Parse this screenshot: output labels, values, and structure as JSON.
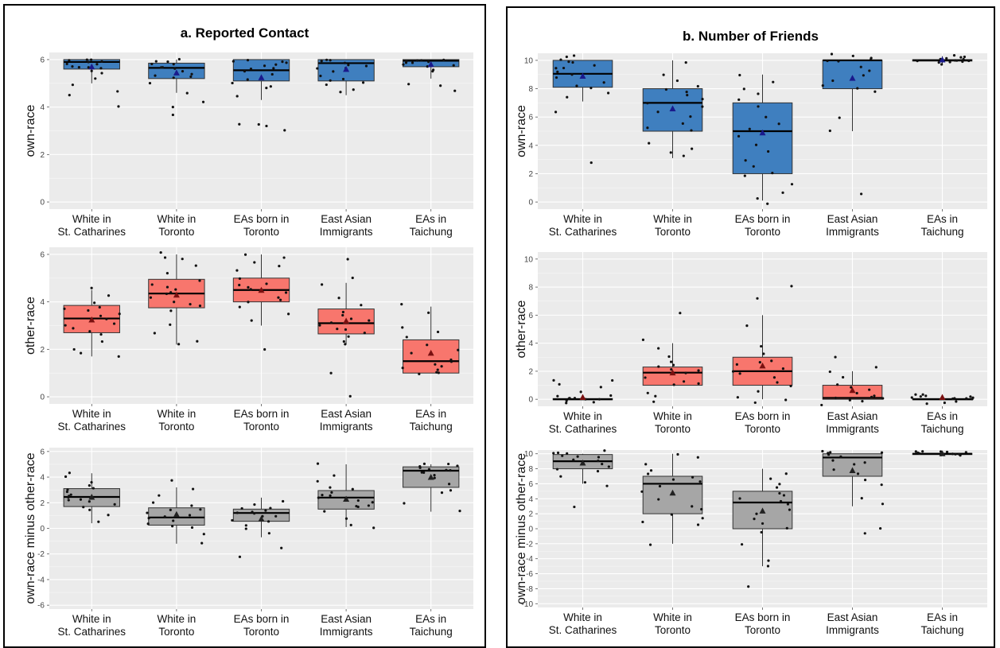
{
  "panels": [
    {
      "title": "a. Reported Contact"
    },
    {
      "title": "b. Number of Friends"
    }
  ],
  "colors": {
    "own_race_fill": "#3f7fbf",
    "other_race_fill": "#f8766d",
    "difference_fill": "#a6a6a6",
    "panel_background": "#ebebeb",
    "gridline": "#ffffff",
    "mean_marker_own": "#1a1a8c",
    "mean_marker_other": "#7a1010",
    "mean_marker_diff": "#222222"
  },
  "chart_data": [
    {
      "type": "box",
      "panel": "a. Reported Contact",
      "ylabel": "own-race",
      "fill": "#3f7fbf",
      "mean_color": "#1a1a8c",
      "ylim": [
        -0.3,
        6.3
      ],
      "yticks": [
        0,
        2,
        4,
        6
      ],
      "categories": [
        [
          "White in",
          "St. Catharines"
        ],
        [
          "White in",
          "Toronto"
        ],
        [
          "EAs born in",
          "Toronto"
        ],
        [
          "East Asian",
          "Immigrants"
        ],
        [
          "EAs in",
          "Taichung"
        ]
      ],
      "boxes": [
        {
          "q1": 5.6,
          "median": 5.9,
          "q3": 6.0,
          "whisker_low": 5.0,
          "whisker_high": 6.0,
          "mean": 5.7,
          "points": [
            6.0,
            5.95,
            5.9,
            5.85,
            5.8,
            5.7,
            5.6,
            5.5,
            5.4,
            5.2,
            4.9,
            4.7,
            4.5,
            4.0,
            6.0,
            5.9,
            5.75,
            5.65
          ]
        },
        {
          "q1": 5.2,
          "median": 5.65,
          "q3": 5.85,
          "whisker_low": 4.6,
          "whisker_high": 6.0,
          "mean": 5.45,
          "points": [
            6.0,
            5.95,
            5.9,
            5.85,
            5.7,
            5.6,
            5.5,
            5.4,
            5.3,
            5.2,
            5.0,
            4.6,
            4.2,
            4.0,
            3.7,
            5.8,
            5.65,
            5.25
          ]
        },
        {
          "q1": 5.1,
          "median": 5.55,
          "q3": 6.0,
          "whisker_low": 4.3,
          "whisker_high": 6.0,
          "mean": 5.25,
          "points": [
            6.0,
            5.95,
            5.9,
            5.8,
            5.7,
            5.6,
            5.5,
            5.4,
            5.2,
            5.0,
            4.8,
            4.5,
            3.3,
            3.2,
            3.3,
            3.0,
            5.9,
            5.65,
            4.9
          ]
        },
        {
          "q1": 5.1,
          "median": 5.85,
          "q3": 6.0,
          "whisker_low": 4.5,
          "whisker_high": 6.0,
          "mean": 5.6,
          "points": [
            6.0,
            5.95,
            5.9,
            5.8,
            5.7,
            5.6,
            5.5,
            5.3,
            5.1,
            5.0,
            4.9,
            4.7,
            4.6,
            5.85,
            5.65,
            5.2
          ]
        },
        {
          "q1": 5.7,
          "median": 5.95,
          "q3": 6.0,
          "whisker_low": 5.2,
          "whisker_high": 6.0,
          "mean": 5.8,
          "points": [
            6.0,
            6.0,
            5.95,
            5.9,
            5.9,
            5.85,
            5.8,
            5.7,
            5.6,
            5.5,
            5.0,
            4.9,
            4.7,
            5.95,
            5.75
          ]
        }
      ]
    },
    {
      "type": "box",
      "panel": "a. Reported Contact",
      "ylabel": "other-race",
      "fill": "#f8766d",
      "mean_color": "#7a1010",
      "ylim": [
        -0.3,
        6.3
      ],
      "yticks": [
        0,
        2,
        4,
        6
      ],
      "categories": [
        [
          "White in",
          "St. Catharines"
        ],
        [
          "White in",
          "Toronto"
        ],
        [
          "EAs born in",
          "Toronto"
        ],
        [
          "East Asian",
          "Immigrants"
        ],
        [
          "EAs in",
          "Taichung"
        ]
      ],
      "boxes": [
        {
          "q1": 2.7,
          "median": 3.3,
          "q3": 3.85,
          "whisker_low": 1.7,
          "whisker_high": 4.5,
          "mean": 3.25,
          "points": [
            4.6,
            4.3,
            4.0,
            3.8,
            3.6,
            3.5,
            3.4,
            3.3,
            3.2,
            3.1,
            3.0,
            2.8,
            2.6,
            2.3,
            2.0,
            1.8,
            1.7,
            3.7,
            2.9
          ]
        },
        {
          "q1": 3.75,
          "median": 4.35,
          "q3": 4.95,
          "whisker_low": 2.2,
          "whisker_high": 6.0,
          "mean": 4.3,
          "points": [
            6.1,
            5.9,
            5.8,
            5.5,
            5.2,
            4.9,
            4.7,
            4.5,
            4.4,
            4.3,
            4.2,
            4.0,
            3.8,
            3.6,
            3.0,
            2.7,
            2.3,
            2.2,
            4.6,
            3.9
          ]
        },
        {
          "q1": 4.0,
          "median": 4.5,
          "q3": 5.0,
          "whisker_low": 3.0,
          "whisker_high": 6.0,
          "mean": 4.5,
          "points": [
            6.0,
            5.9,
            5.7,
            5.5,
            5.3,
            5.0,
            4.8,
            4.6,
            4.5,
            4.4,
            4.2,
            4.0,
            3.8,
            3.5,
            3.2,
            2.0,
            4.7,
            4.1
          ]
        },
        {
          "q1": 2.65,
          "median": 3.1,
          "q3": 3.7,
          "whisker_low": 2.2,
          "whisker_high": 4.8,
          "mean": 3.2,
          "points": [
            5.8,
            5.0,
            4.7,
            4.2,
            3.9,
            3.6,
            3.4,
            3.2,
            3.1,
            3.0,
            2.9,
            2.7,
            2.5,
            2.3,
            2.2,
            1.0,
            0.0,
            3.3,
            2.8
          ]
        },
        {
          "q1": 1.0,
          "median": 1.5,
          "q3": 2.4,
          "whisker_low": 1.0,
          "whisker_high": 3.8,
          "mean": 1.85,
          "points": [
            3.9,
            3.5,
            2.7,
            2.5,
            2.2,
            2.0,
            1.8,
            1.6,
            1.5,
            1.4,
            1.2,
            1.1,
            1.0,
            1.0,
            1.0,
            1.3,
            2.9
          ]
        }
      ]
    },
    {
      "type": "box",
      "panel": "a. Reported Contact",
      "ylabel": "own-race minus other-race",
      "fill": "#a6a6a6",
      "mean_color": "#222222",
      "ylim": [
        -6.3,
        6.3
      ],
      "yticks": [
        -6,
        -4,
        -2,
        0,
        2,
        4,
        6
      ],
      "categories": [
        [
          "White in",
          "St. Catharines"
        ],
        [
          "White in",
          "Toronto"
        ],
        [
          "EAs born in",
          "Toronto"
        ],
        [
          "East Asian",
          "Immigrants"
        ],
        [
          "EAs in",
          "Taichung"
        ]
      ],
      "boxes": [
        {
          "q1": 1.7,
          "median": 2.45,
          "q3": 3.1,
          "whisker_low": 0.4,
          "whisker_high": 4.3,
          "mean": 2.45,
          "points": [
            4.3,
            4.0,
            3.6,
            3.2,
            3.0,
            2.8,
            2.6,
            2.5,
            2.4,
            2.3,
            2.1,
            1.9,
            1.7,
            1.4,
            1.0,
            0.5,
            3.4,
            2.2
          ]
        },
        {
          "q1": 0.25,
          "median": 0.85,
          "q3": 1.6,
          "whisker_low": -1.2,
          "whisker_high": 3.2,
          "mean": 1.1,
          "points": [
            3.7,
            3.1,
            2.6,
            2.0,
            1.7,
            1.4,
            1.2,
            1.0,
            0.8,
            0.6,
            0.4,
            0.2,
            0.0,
            -0.4,
            -1.2,
            0.9,
            1.5
          ]
        },
        {
          "q1": 0.55,
          "median": 1.2,
          "q3": 1.5,
          "whisker_low": -0.7,
          "whisker_high": 2.4,
          "mean": 0.75,
          "points": [
            2.1,
            1.9,
            1.6,
            1.4,
            1.3,
            1.2,
            1.1,
            0.9,
            0.7,
            0.5,
            0.3,
            0.0,
            -0.4,
            -1.6,
            -2.3,
            1.0,
            1.5
          ]
        },
        {
          "q1": 1.5,
          "median": 2.4,
          "q3": 2.95,
          "whisker_low": 0.1,
          "whisker_high": 5.0,
          "mean": 2.3,
          "points": [
            5.0,
            4.2,
            3.6,
            3.2,
            3.0,
            2.8,
            2.6,
            2.4,
            2.2,
            2.0,
            1.8,
            1.6,
            1.3,
            0.8,
            0.3,
            0.1,
            2.5,
            1.7
          ]
        },
        {
          "q1": 3.2,
          "median": 4.5,
          "q3": 4.8,
          "whisker_low": 1.3,
          "whisker_high": 5.0,
          "mean": 4.0,
          "points": [
            5.0,
            5.0,
            4.9,
            4.8,
            4.7,
            4.6,
            4.5,
            4.4,
            4.2,
            3.9,
            3.5,
            3.0,
            2.8,
            2.0,
            1.3,
            4.6,
            4.3
          ]
        }
      ]
    },
    {
      "type": "box",
      "panel": "b. Number of Friends",
      "ylabel": "own-race",
      "fill": "#3f7fbf",
      "mean_color": "#1a1a8c",
      "ylim": [
        -0.5,
        10.5
      ],
      "yticks": [
        0,
        2,
        4,
        6,
        8,
        10
      ],
      "categories": [
        [
          "White in",
          "St. Catharines"
        ],
        [
          "White in",
          "Toronto"
        ],
        [
          "EAs born in",
          "Toronto"
        ],
        [
          "East Asian",
          "Immigrants"
        ],
        [
          "EAs in",
          "Taichung"
        ]
      ],
      "boxes": [
        {
          "q1": 8.1,
          "median": 9.05,
          "q3": 10.0,
          "whisker_low": 7.1,
          "whisker_high": 10.0,
          "mean": 8.9,
          "points": [
            10.3,
            10.2,
            10.0,
            9.9,
            9.8,
            9.6,
            9.4,
            9.2,
            9.0,
            8.8,
            8.5,
            8.2,
            8.0,
            7.7,
            7.4,
            6.3,
            2.8,
            9.5
          ]
        },
        {
          "q1": 5.0,
          "median": 7.0,
          "q3": 8.0,
          "whisker_low": 3.1,
          "whisker_high": 10.0,
          "mean": 6.6,
          "points": [
            9.9,
            9.0,
            8.6,
            8.2,
            8.0,
            7.8,
            7.2,
            7.0,
            6.8,
            6.3,
            6.0,
            5.6,
            5.2,
            5.0,
            4.2,
            3.8,
            3.5,
            3.2,
            7.5
          ]
        },
        {
          "q1": 2.0,
          "median": 5.0,
          "q3": 7.0,
          "whisker_low": 0.1,
          "whisker_high": 9.0,
          "mean": 4.9,
          "points": [
            9.0,
            8.4,
            8.0,
            7.2,
            6.8,
            6.0,
            5.5,
            5.1,
            4.6,
            4.0,
            3.5,
            3.0,
            2.5,
            2.1,
            1.8,
            1.2,
            0.6,
            0.2,
            -0.1,
            7.7
          ]
        },
        {
          "q1": 8.0,
          "median": 10.0,
          "q3": 10.0,
          "whisker_low": 5.0,
          "whisker_high": 10.0,
          "mean": 8.75,
          "points": [
            10.4,
            10.3,
            10.2,
            10.1,
            10.0,
            10.0,
            9.6,
            9.0,
            8.6,
            8.2,
            8.0,
            7.8,
            5.9,
            5.0,
            0.6,
            9.3
          ]
        },
        {
          "q1": 9.95,
          "median": 10.0,
          "q3": 10.05,
          "whisker_low": 9.7,
          "whisker_high": 10.3,
          "mean": 10.05,
          "points": [
            10.3,
            10.25,
            10.2,
            10.1,
            10.05,
            10.0,
            10.0,
            9.95,
            9.9,
            9.85,
            9.8,
            9.7,
            10.15,
            10.05
          ]
        }
      ]
    },
    {
      "type": "box",
      "panel": "b. Number of Friends",
      "ylabel": "other-race",
      "fill": "#f8766d",
      "mean_color": "#7a1010",
      "ylim": [
        -0.5,
        10.5
      ],
      "yticks": [
        0,
        2,
        4,
        6,
        8,
        10
      ],
      "categories": [
        [
          "White in",
          "St. Catharines"
        ],
        [
          "White in",
          "Toronto"
        ],
        [
          "EAs born in",
          "Toronto"
        ],
        [
          "East Asian",
          "Immigrants"
        ],
        [
          "EAs in",
          "Taichung"
        ]
      ],
      "boxes": [
        {
          "q1": 0.0,
          "median": 0.0,
          "q3": 0.05,
          "whisker_low": 0.0,
          "whisker_high": 0.1,
          "mean": 0.15,
          "points": [
            1.4,
            1.3,
            1.0,
            0.8,
            0.5,
            0.3,
            0.2,
            0.1,
            0.0,
            0.0,
            0.0,
            -0.1,
            -0.2,
            -0.3,
            0.05
          ]
        },
        {
          "q1": 1.0,
          "median": 1.9,
          "q3": 2.3,
          "whisker_low": 1.0,
          "whisker_high": 4.0,
          "mean": 1.9,
          "points": [
            6.1,
            4.2,
            3.7,
            3.0,
            2.7,
            2.4,
            2.2,
            2.0,
            1.9,
            1.6,
            1.3,
            1.1,
            1.0,
            0.5,
            0.2,
            -0.2,
            2.5
          ]
        },
        {
          "q1": 1.0,
          "median": 2.0,
          "q3": 3.0,
          "whisker_low": 0.0,
          "whisker_high": 6.0,
          "mean": 2.4,
          "points": [
            8.0,
            7.2,
            5.2,
            3.8,
            3.2,
            2.8,
            2.5,
            2.2,
            2.0,
            1.8,
            1.5,
            1.2,
            1.0,
            0.5,
            0.2,
            0.0,
            -0.2,
            2.6
          ]
        },
        {
          "q1": 0.0,
          "median": 0.1,
          "q3": 1.0,
          "whisker_low": 0.0,
          "whisker_high": 2.0,
          "mean": 0.65,
          "points": [
            3.0,
            2.3,
            2.0,
            1.5,
            1.1,
            0.9,
            0.5,
            0.3,
            0.2,
            0.1,
            0.0,
            0.0,
            -0.2,
            -0.4,
            0.7
          ]
        },
        {
          "q1": 0.0,
          "median": 0.0,
          "q3": 0.05,
          "whisker_low": 0.0,
          "whisker_high": 0.2,
          "mean": 0.15,
          "points": [
            0.4,
            0.3,
            0.3,
            0.2,
            0.1,
            0.0,
            0.0,
            0.0,
            0.0,
            -0.1,
            -0.2,
            -0.3,
            0.1,
            0.2
          ]
        }
      ]
    },
    {
      "type": "box",
      "panel": "b. Number of Friends",
      "ylabel": "own-race minus other-race",
      "fill": "#a6a6a6",
      "mean_color": "#222222",
      "ylim": [
        -10.5,
        10.5
      ],
      "yticks": [
        -10,
        -8,
        -6,
        -4,
        -2,
        0,
        2,
        4,
        6,
        8,
        10
      ],
      "categories": [
        [
          "White in",
          "St. Catharines"
        ],
        [
          "White in",
          "Toronto"
        ],
        [
          "EAs born in",
          "Toronto"
        ],
        [
          "East Asian",
          "Immigrants"
        ],
        [
          "EAs in",
          "Taichung"
        ]
      ],
      "boxes": [
        {
          "q1": 8.0,
          "median": 9.0,
          "q3": 9.9,
          "whisker_low": 6.0,
          "whisker_high": 10.0,
          "mean": 8.8,
          "points": [
            10.3,
            10.2,
            10.1,
            10.0,
            9.8,
            9.6,
            9.3,
            9.0,
            8.7,
            8.4,
            8.0,
            7.6,
            7.0,
            6.2,
            5.7,
            2.8,
            9.5
          ]
        },
        {
          "q1": 2.0,
          "median": 6.0,
          "q3": 7.0,
          "whisker_low": -2.0,
          "whisker_high": 10.0,
          "mean": 4.8,
          "points": [
            10.0,
            9.6,
            8.6,
            7.8,
            7.2,
            6.8,
            6.2,
            5.6,
            5.0,
            4.0,
            3.0,
            2.5,
            2.0,
            1.4,
            1.0,
            0.6,
            -2.2,
            6.5
          ]
        },
        {
          "q1": 0.0,
          "median": 3.5,
          "q3": 5.0,
          "whisker_low": -5.0,
          "whisker_high": 8.0,
          "mean": 2.4,
          "points": [
            7.4,
            6.6,
            6.0,
            5.4,
            4.8,
            4.0,
            3.6,
            3.2,
            2.6,
            2.0,
            1.4,
            0.6,
            0.0,
            -0.6,
            -2.0,
            -4.2,
            -5.1,
            -7.8,
            4.4
          ]
        },
        {
          "q1": 7.0,
          "median": 9.5,
          "q3": 10.0,
          "whisker_low": 3.0,
          "whisker_high": 10.0,
          "mean": 7.8,
          "points": [
            10.3,
            10.2,
            10.1,
            10.0,
            9.8,
            9.5,
            9.2,
            8.6,
            8.0,
            7.4,
            6.6,
            5.8,
            4.0,
            3.3,
            0.0,
            -0.6,
            8.9
          ]
        },
        {
          "q1": 9.9,
          "median": 10.0,
          "q3": 10.05,
          "whisker_low": 9.8,
          "whisker_high": 10.2,
          "mean": 10.05,
          "points": [
            10.3,
            10.2,
            10.2,
            10.1,
            10.05,
            10.0,
            10.0,
            9.95,
            9.9,
            9.85,
            9.8,
            10.15,
            10.05
          ]
        }
      ]
    }
  ]
}
